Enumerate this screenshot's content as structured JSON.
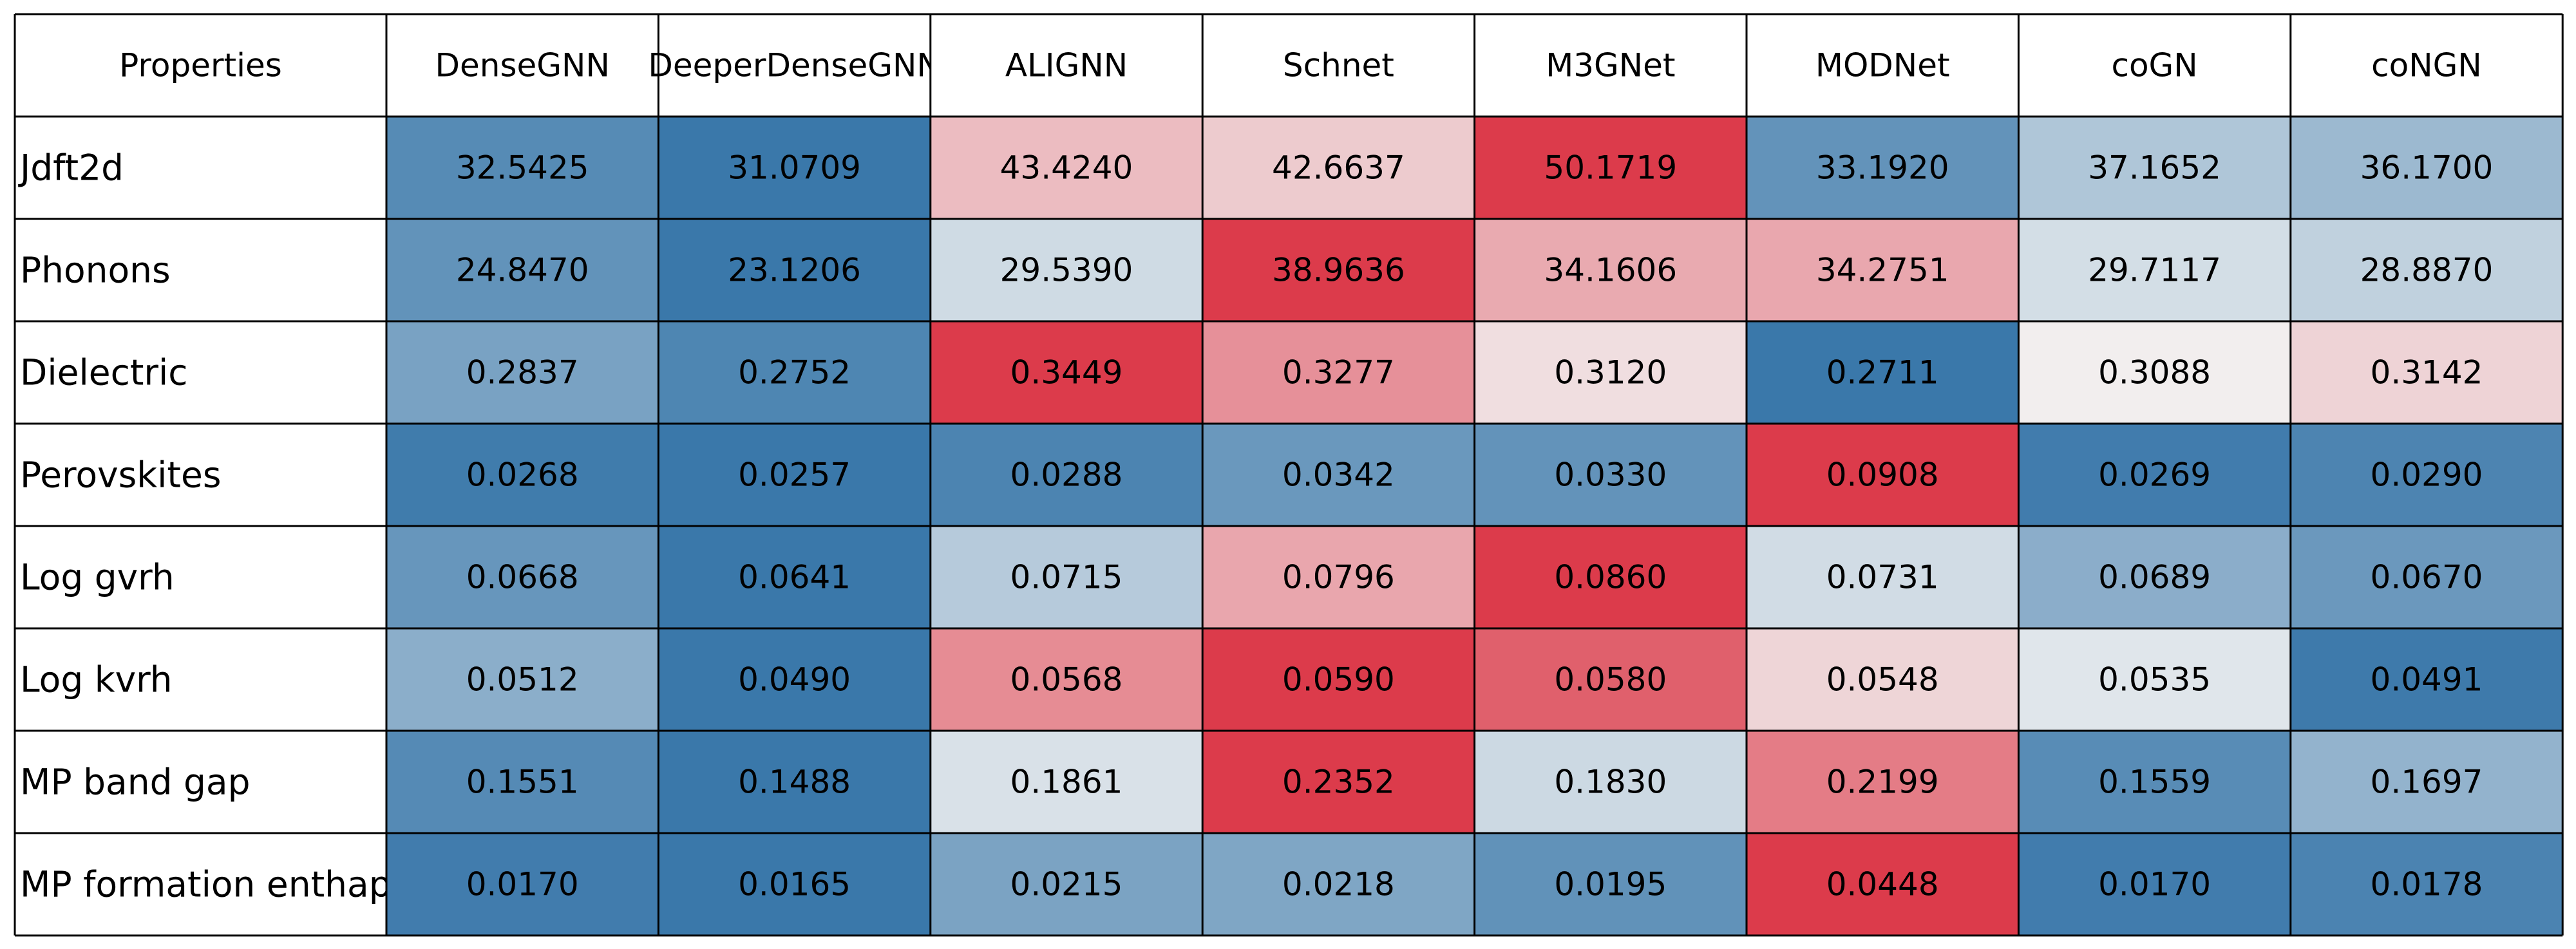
{
  "chart_data": {
    "type": "heatmap",
    "corner_label": "Properties",
    "columns": [
      "DenseGNN",
      "DeeperDenseGNN",
      "ALIGNN",
      "Schnet",
      "M3GNet",
      "MODNet",
      "coGN",
      "coNGN"
    ],
    "rows": [
      "Jdft2d",
      "Phonons",
      "Dielectric",
      "Perovskites",
      "Log gvrh",
      "Log kvrh",
      "MP band gap",
      "MP formation enthapy"
    ],
    "values": [
      [
        "32.5425",
        "31.0709",
        "43.4240",
        "42.6637",
        "50.1719",
        "33.1920",
        "37.1652",
        "36.1700"
      ],
      [
        "24.8470",
        "23.1206",
        "29.5390",
        "38.9636",
        "34.1606",
        "34.2751",
        "29.7117",
        "28.8870"
      ],
      [
        "0.2837",
        "0.2752",
        "0.3449",
        "0.3277",
        "0.3120",
        "0.2711",
        "0.3088",
        "0.3142"
      ],
      [
        "0.0268",
        "0.0257",
        "0.0288",
        "0.0342",
        "0.0330",
        "0.0908",
        "0.0269",
        "0.0290"
      ],
      [
        "0.0668",
        "0.0641",
        "0.0715",
        "0.0796",
        "0.0860",
        "0.0731",
        "0.0689",
        "0.0670"
      ],
      [
        "0.0512",
        "0.0490",
        "0.0568",
        "0.0590",
        "0.0580",
        "0.0548",
        "0.0535",
        "0.0491"
      ],
      [
        "0.1551",
        "0.1488",
        "0.1861",
        "0.2352",
        "0.1830",
        "0.2199",
        "0.1559",
        "0.1697"
      ],
      [
        "0.0170",
        "0.0165",
        "0.0215",
        "0.0218",
        "0.0195",
        "0.0448",
        "0.0170",
        "0.0178"
      ]
    ],
    "colormap": {
      "low": "#3a78aa",
      "mid": "#f2f2f2",
      "high": "#dc3b4b"
    },
    "color_scale": "per-row",
    "gridlines": true
  }
}
